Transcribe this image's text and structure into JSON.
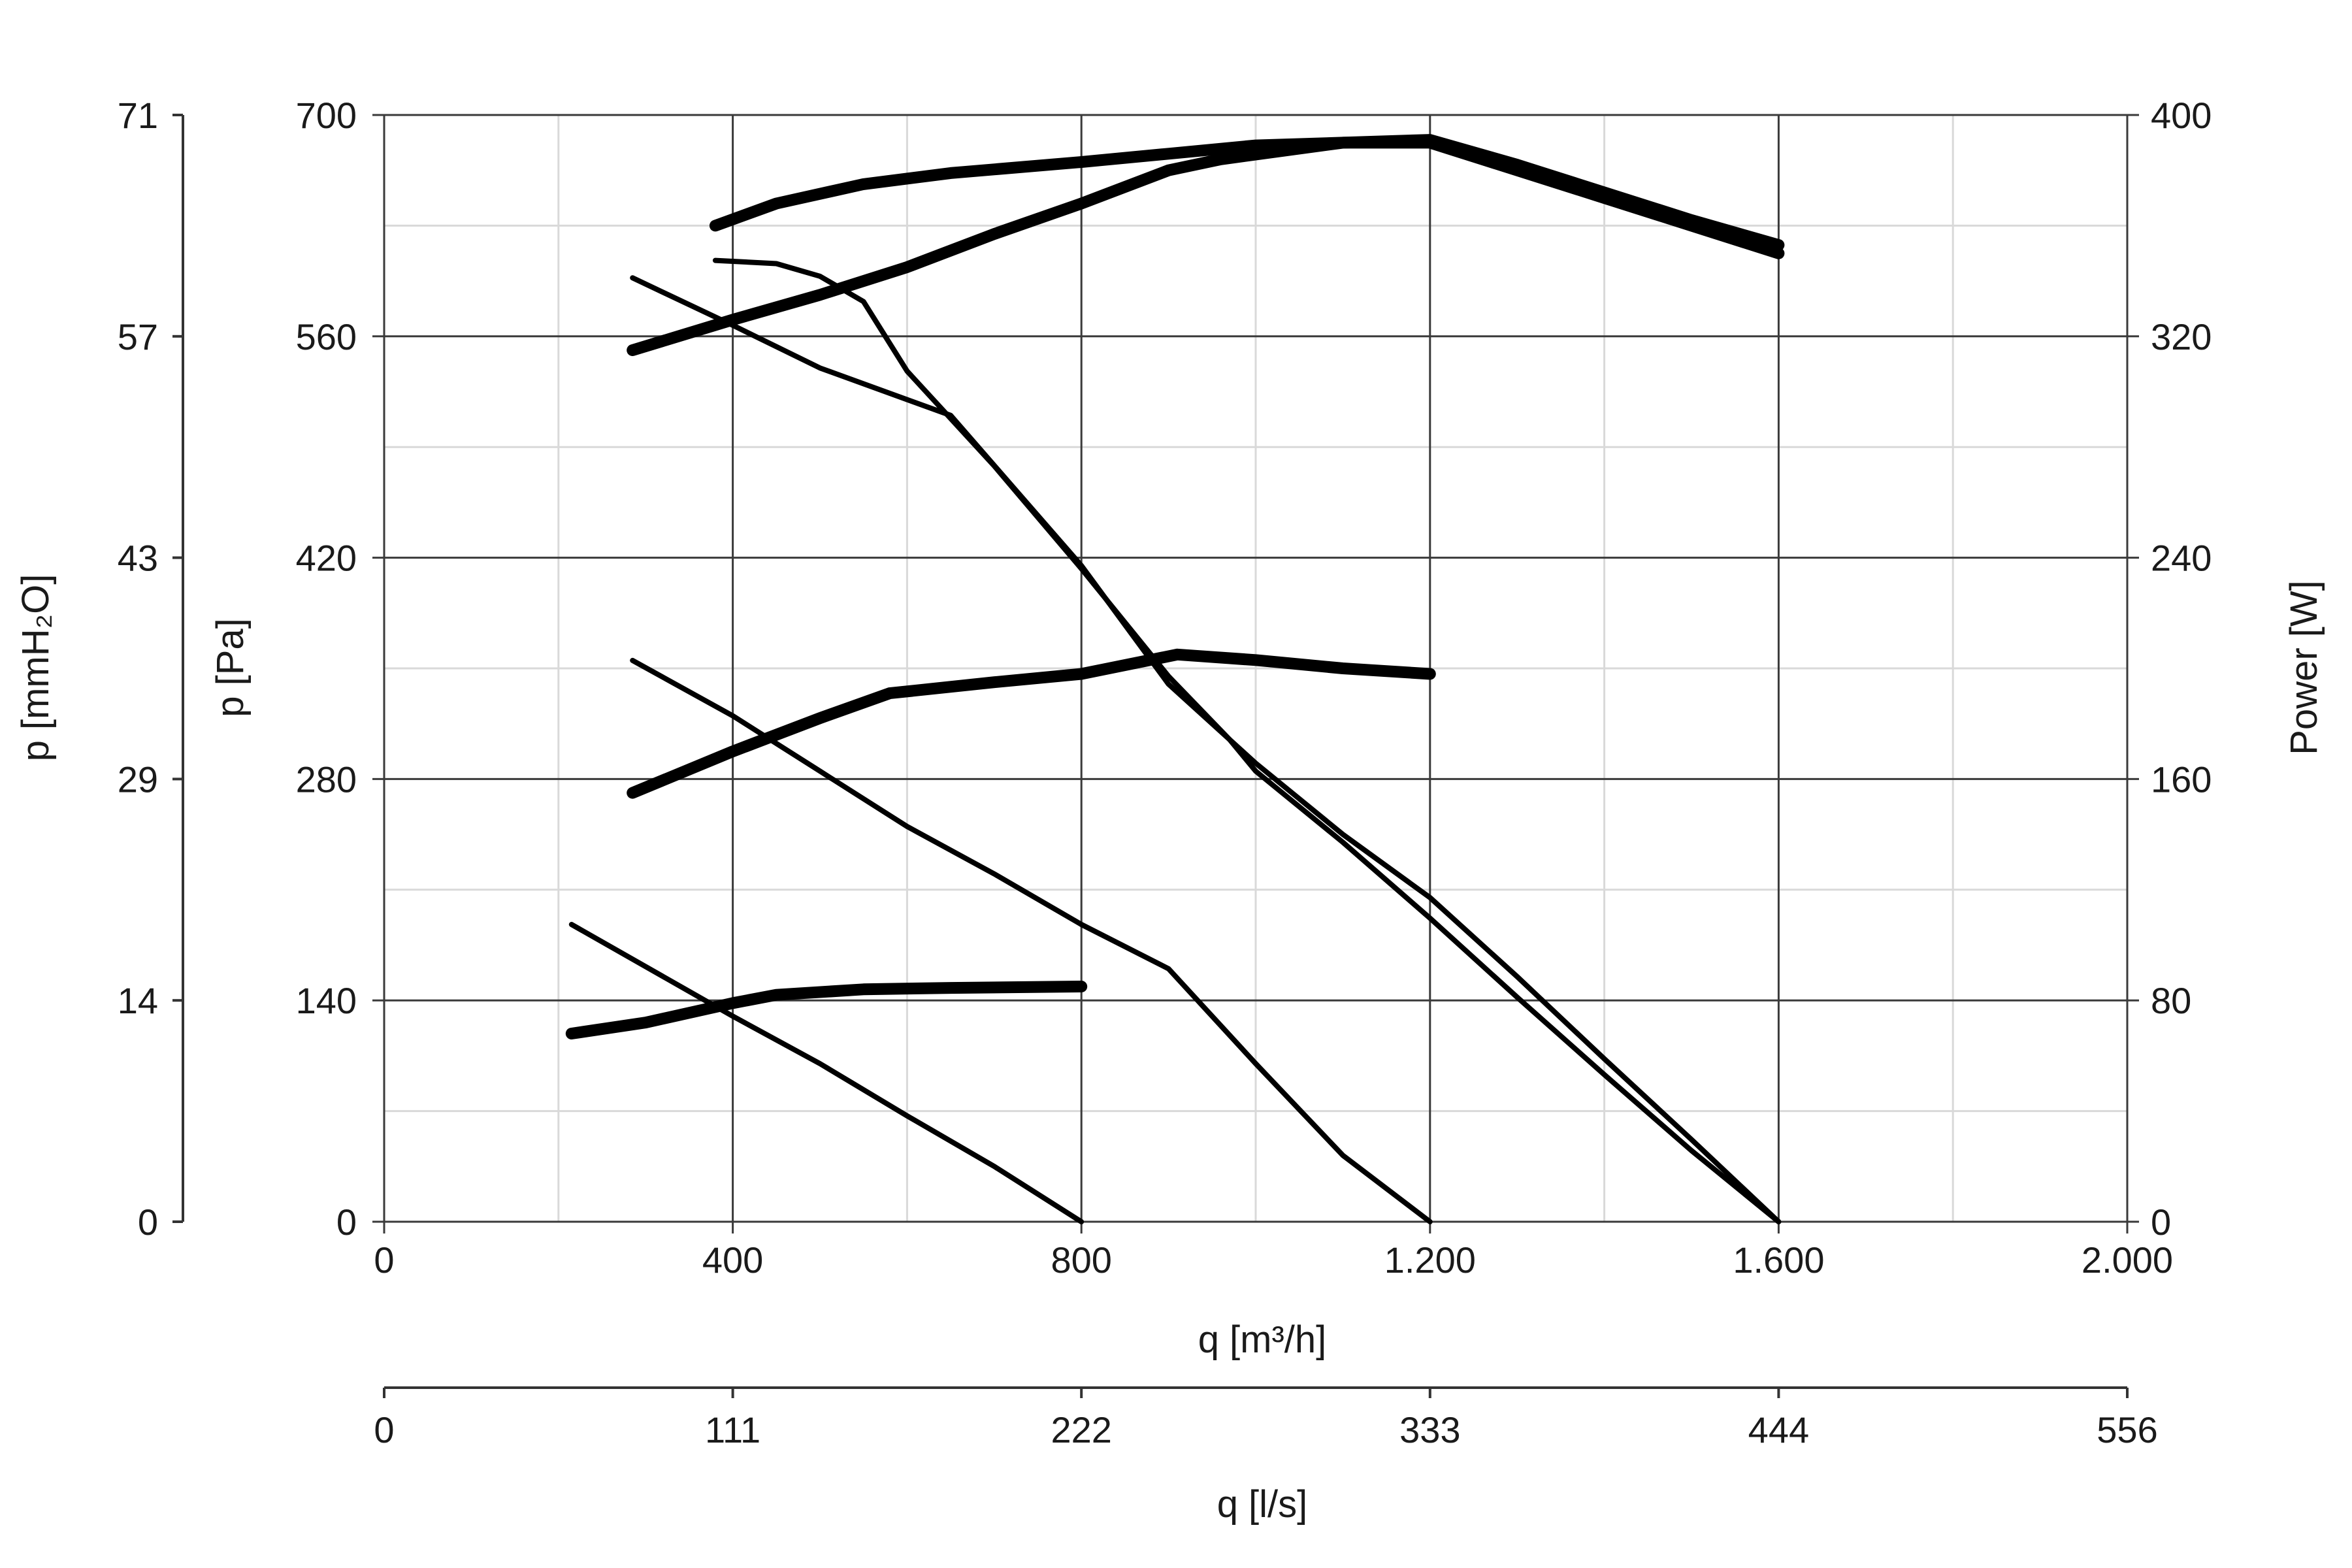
{
  "chart_data": {
    "type": "line",
    "x_axis": {
      "label": "q [m³/h]",
      "range": [
        0,
        2000
      ],
      "ticks": [
        0,
        400,
        800,
        1200,
        1600,
        2000
      ],
      "tick_labels": [
        "0",
        "400",
        "800",
        "1.200",
        "1.600",
        "2.000"
      ],
      "minor_step": 200
    },
    "x2_axis": {
      "label": "q [l/s]",
      "tick_labels": [
        "0",
        "111",
        "222",
        "333",
        "444",
        "556"
      ]
    },
    "y_axis": {
      "label": "p [Pa]",
      "range": [
        0,
        700
      ],
      "ticks": [
        0,
        140,
        280,
        420,
        560,
        700
      ],
      "tick_labels": [
        "0",
        "140",
        "280",
        "420",
        "560",
        "700"
      ],
      "minor_step": 70
    },
    "y_axis_outer": {
      "label": "p [mmH₂O]",
      "tick_labels": [
        "0",
        "14",
        "29",
        "43",
        "57",
        "71"
      ]
    },
    "y2_axis": {
      "label": "Power [W]",
      "range": [
        0,
        400
      ],
      "tick_labels": [
        "0",
        "80",
        "160",
        "240",
        "320",
        "400"
      ]
    },
    "grid": true,
    "series": [
      {
        "role": "pressure",
        "axis": "y",
        "x": [
          215,
          400,
          500,
          600,
          700,
          800
        ],
        "y": [
          188,
          130,
          100,
          67,
          35,
          0
        ]
      },
      {
        "role": "pressure",
        "axis": "y",
        "x": [
          285,
          400,
          500,
          600,
          700,
          800,
          900,
          1000,
          1100,
          1200
        ],
        "y": [
          355,
          320,
          285,
          250,
          220,
          188,
          160,
          100,
          42,
          0
        ]
      },
      {
        "role": "pressure",
        "axis": "y",
        "x": [
          285,
          400,
          500,
          650,
          800,
          900,
          1000,
          1100,
          1200,
          1300,
          1400,
          1500,
          1600
        ],
        "y": [
          597,
          567,
          540,
          510,
          415,
          340,
          290,
          245,
          205,
          155,
          103,
          52,
          0
        ]
      },
      {
        "role": "pressure",
        "axis": "y",
        "x": [
          380,
          450,
          500,
          550,
          600,
          700,
          800,
          900,
          970,
          1000,
          1100,
          1200,
          1300,
          1400,
          1500,
          1600
        ],
        "y": [
          608,
          606,
          598,
          582,
          538,
          478,
          413,
          345,
          305,
          285,
          240,
          192,
          142,
          93,
          45,
          0
        ]
      },
      {
        "role": "power",
        "axis": "y2",
        "x": [
          215,
          300,
          400,
          450,
          550,
          650,
          800
        ],
        "y": [
          68,
          72,
          79,
          82,
          84,
          84.5,
          85
        ]
      },
      {
        "role": "power",
        "axis": "y2",
        "x": [
          285,
          400,
          500,
          580,
          700,
          800,
          910,
          1000,
          1100,
          1200
        ],
        "y": [
          155,
          170,
          182,
          191,
          195,
          198,
          205,
          203,
          200,
          198
        ]
      },
      {
        "role": "power",
        "axis": "y2",
        "x": [
          285,
          400,
          500,
          600,
          700,
          800,
          900,
          960,
          1100,
          1200,
          1300,
          1400,
          1500,
          1600
        ],
        "y": [
          315,
          326,
          335,
          345,
          357,
          368,
          380,
          384,
          390,
          390,
          380,
          370,
          360,
          350
        ]
      },
      {
        "role": "power",
        "axis": "y2",
        "x": [
          380,
          450,
          550,
          650,
          800,
          900,
          1000,
          1100,
          1200,
          1300,
          1400,
          1500,
          1600
        ],
        "y": [
          360,
          368,
          375,
          379,
          383,
          386,
          389,
          390,
          391,
          382,
          372,
          362,
          353
        ]
      }
    ]
  }
}
